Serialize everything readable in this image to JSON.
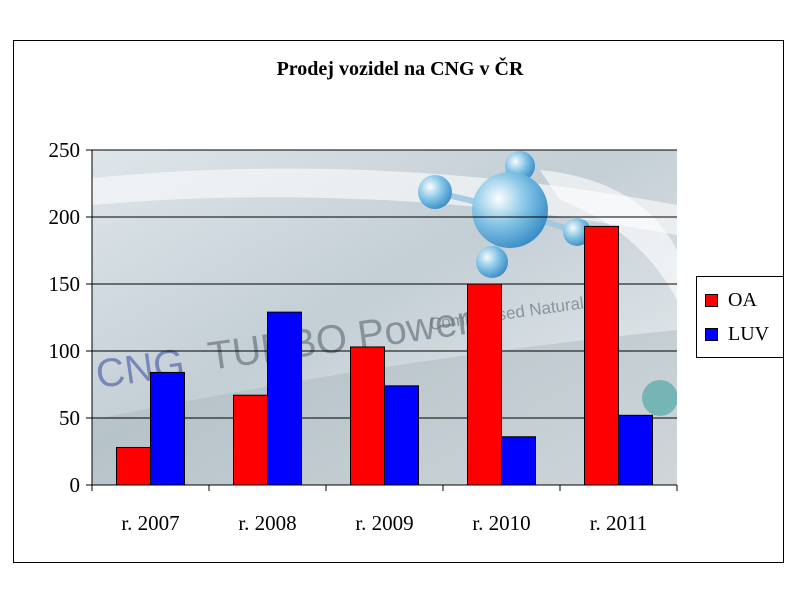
{
  "chart_data": {
    "type": "bar",
    "title": "Prodej vozidel na CNG v ČR",
    "categories": [
      "r. 2007",
      "r. 2008",
      "r. 2009",
      "r. 2010",
      "r. 2011"
    ],
    "series": [
      {
        "name": "OA",
        "color": "#ff0000",
        "values": [
          28,
          67,
          103,
          150,
          193
        ]
      },
      {
        "name": "LUV",
        "color": "#0000ff",
        "values": [
          84,
          129,
          74,
          36,
          52
        ]
      }
    ],
    "ylim": [
      0,
      250
    ],
    "yticks": [
      0,
      50,
      100,
      150,
      200,
      250
    ],
    "grid": true,
    "legend_position": "right",
    "plot_background": "CNG TURBO Power compressed natural gas image",
    "xlabel": "",
    "ylabel": ""
  }
}
